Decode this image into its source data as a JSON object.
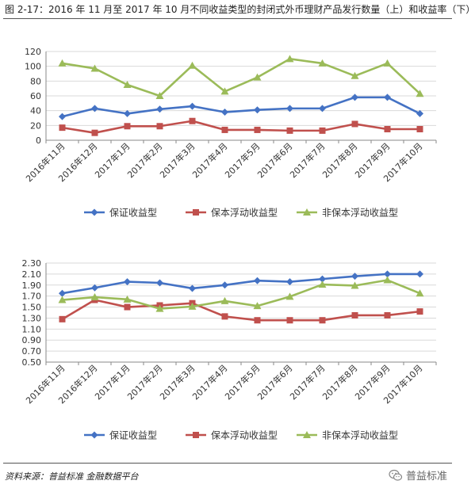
{
  "figure_title": "图 2-17：2016 年 11 月至 2017 年 10 月不同收益类型的封闭式外币理财产品发行数量（上）和收益率（下）",
  "source_text": "资料来源：普益标准 金融数据平台",
  "brand_text": "普益标准",
  "brand_icon": "wechat-icon",
  "colors": {
    "series1": "#4472C4",
    "series2": "#C0504D",
    "series3": "#9BBB59",
    "grid": "#d9d9d9",
    "axis": "#888888"
  },
  "chart_data": [
    {
      "type": "line",
      "title": "",
      "xlabel": "",
      "ylabel": "",
      "categories": [
        "2016年11月",
        "2016年12月",
        "2017年1月",
        "2017年2月",
        "2017年3月",
        "2017年4月",
        "2017年5月",
        "2017年6月",
        "2017年7月",
        "2017年8月",
        "2017年9月",
        "2017年10月"
      ],
      "ylim": [
        0,
        120
      ],
      "yticks": [
        "0",
        "20",
        "40",
        "60",
        "80",
        "100",
        "120"
      ],
      "grid": true,
      "legend_position": "bottom",
      "series": [
        {
          "name": "保证收益型",
          "marker": "diamond",
          "values": [
            32,
            43,
            36,
            42,
            46,
            38,
            41,
            43,
            43,
            58,
            58,
            36
          ]
        },
        {
          "name": "保本浮动收益型",
          "marker": "square",
          "values": [
            17,
            10,
            19,
            19,
            26,
            14,
            14,
            13,
            13,
            22,
            15,
            15
          ]
        },
        {
          "name": "非保本浮动收益型",
          "marker": "triangle",
          "values": [
            104,
            97,
            75,
            60,
            101,
            66,
            85,
            110,
            104,
            87,
            104,
            63
          ]
        }
      ]
    },
    {
      "type": "line",
      "title": "",
      "xlabel": "",
      "ylabel": "",
      "categories": [
        "2016年11月",
        "2016年12月",
        "2017年1月",
        "2017年2月",
        "2017年3月",
        "2017年4月",
        "2017年5月",
        "2017年6月",
        "2017年7月",
        "2017年8月",
        "2017年9月",
        "2017年10月"
      ],
      "ylim": [
        0.5,
        2.3
      ],
      "yticks": [
        "0.50",
        "0.70",
        "0.90",
        "1.10",
        "1.30",
        "1.50",
        "1.70",
        "1.90",
        "2.10",
        "2.30"
      ],
      "grid": true,
      "legend_position": "bottom",
      "series": [
        {
          "name": "保证收益型",
          "marker": "diamond",
          "values": [
            1.75,
            1.85,
            1.96,
            1.94,
            1.84,
            1.9,
            1.98,
            1.96,
            2.01,
            2.06,
            2.1,
            2.1
          ]
        },
        {
          "name": "保本浮动收益型",
          "marker": "square",
          "values": [
            1.28,
            1.63,
            1.5,
            1.53,
            1.57,
            1.33,
            1.26,
            1.26,
            1.26,
            1.35,
            1.35,
            1.42
          ]
        },
        {
          "name": "非保本浮动收益型",
          "marker": "triangle",
          "values": [
            1.63,
            1.68,
            1.64,
            1.47,
            1.51,
            1.61,
            1.52,
            1.69,
            1.91,
            1.89,
            1.99,
            1.75
          ]
        }
      ]
    }
  ]
}
